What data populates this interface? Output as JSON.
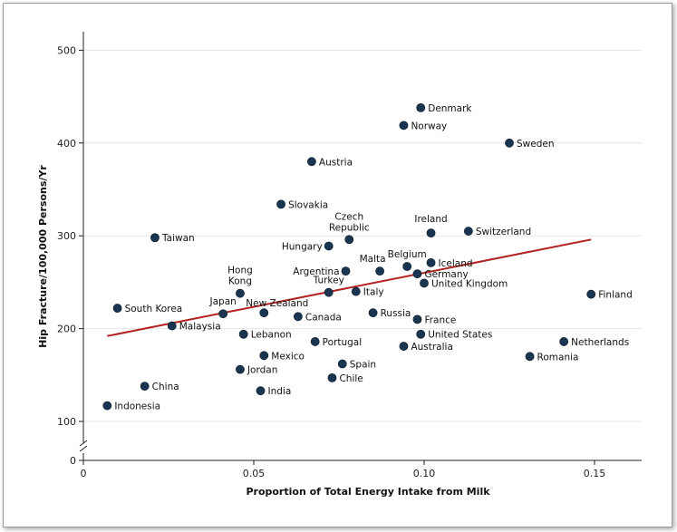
{
  "chart_data": {
    "type": "scatter",
    "xlabel": "Proportion of Total Energy Intake from Milk",
    "ylabel": "Hip Fracture/100,000 Persons/Yr",
    "xlim": [
      0,
      0.16
    ],
    "ylim": [
      0,
      520
    ],
    "x_ticks": [
      0,
      0.05,
      0.1,
      0.15
    ],
    "x_tick_labels": [
      "0",
      "0.05",
      "0.10",
      "0.15"
    ],
    "y_ticks": [
      0,
      100,
      200,
      300,
      400,
      500
    ],
    "y_tick_labels": [
      "0",
      "100",
      "200",
      "300",
      "400",
      "500"
    ],
    "axis_break": "y between 0 and 100",
    "grid": "horizontal",
    "point_color": "#1a3550",
    "trend_color": "#b22222",
    "trend_line": {
      "x": [
        0.007,
        0.149
      ],
      "y": [
        192,
        296
      ]
    },
    "points": [
      {
        "label": "Denmark",
        "x": 0.099,
        "y": 438,
        "lx": 0,
        "ly": 0,
        "anchor": "start"
      },
      {
        "label": "Norway",
        "x": 0.094,
        "y": 419,
        "lx": 0,
        "ly": 0,
        "anchor": "start"
      },
      {
        "label": "Sweden",
        "x": 0.125,
        "y": 400,
        "lx": 0,
        "ly": 0,
        "anchor": "start"
      },
      {
        "label": "Austria",
        "x": 0.067,
        "y": 380,
        "lx": 0,
        "ly": 0,
        "anchor": "start"
      },
      {
        "label": "Slovakia",
        "x": 0.058,
        "y": 334,
        "lx": 0,
        "ly": 0,
        "anchor": "start"
      },
      {
        "label": "Czech Republic",
        "x": 0.078,
        "y": 296,
        "lx": 0,
        "ly": 0,
        "anchor": "middle"
      },
      {
        "label": "Ireland",
        "x": 0.102,
        "y": 303,
        "lx": 0,
        "ly": 0,
        "anchor": "middle"
      },
      {
        "label": "Switzerland",
        "x": 0.113,
        "y": 305,
        "lx": 0,
        "ly": 0,
        "anchor": "start"
      },
      {
        "label": "Taiwan",
        "x": 0.021,
        "y": 298,
        "lx": 0,
        "ly": 0,
        "anchor": "start"
      },
      {
        "label": "Hungary",
        "x": 0.072,
        "y": 289,
        "lx": 0,
        "ly": 0,
        "anchor": "end"
      },
      {
        "label": "Iceland",
        "x": 0.102,
        "y": 271,
        "lx": 0,
        "ly": 0,
        "anchor": "start"
      },
      {
        "label": "Belgium",
        "x": 0.095,
        "y": 267,
        "lx": 0,
        "ly": 0,
        "anchor": "middle"
      },
      {
        "label": "Malta",
        "x": 0.087,
        "y": 262,
        "lx": 0,
        "ly": 0,
        "anchor": "middle"
      },
      {
        "label": "Argentina",
        "x": 0.077,
        "y": 262,
        "lx": 0,
        "ly": 0,
        "anchor": "end"
      },
      {
        "label": "Germany",
        "x": 0.098,
        "y": 259,
        "lx": 0,
        "ly": 0,
        "anchor": "start"
      },
      {
        "label": "United Kingdom",
        "x": 0.1,
        "y": 249,
        "lx": 0,
        "ly": 0,
        "anchor": "start"
      },
      {
        "label": "Turkey",
        "x": 0.072,
        "y": 239,
        "lx": 0,
        "ly": 0,
        "anchor": "middle"
      },
      {
        "label": "Italy",
        "x": 0.08,
        "y": 240,
        "lx": 0,
        "ly": 0,
        "anchor": "start"
      },
      {
        "label": "Hong Kong",
        "x": 0.046,
        "y": 238,
        "lx": 0,
        "ly": 0,
        "anchor": "middle"
      },
      {
        "label": "Finland",
        "x": 0.149,
        "y": 237,
        "lx": 0,
        "ly": 0,
        "anchor": "start"
      },
      {
        "label": "South Korea",
        "x": 0.01,
        "y": 222,
        "lx": 0,
        "ly": 0,
        "anchor": "start"
      },
      {
        "label": "Japan",
        "x": 0.041,
        "y": 216,
        "lx": 0,
        "ly": 0,
        "anchor": "middle"
      },
      {
        "label": "New Zealand",
        "x": 0.053,
        "y": 217,
        "lx": 0,
        "ly": 0,
        "anchor": "start"
      },
      {
        "label": "Canada",
        "x": 0.063,
        "y": 213,
        "lx": 0,
        "ly": 0,
        "anchor": "start"
      },
      {
        "label": "Russia",
        "x": 0.085,
        "y": 217,
        "lx": 0,
        "ly": 0,
        "anchor": "start"
      },
      {
        "label": "France",
        "x": 0.098,
        "y": 210,
        "lx": 0,
        "ly": 0,
        "anchor": "start"
      },
      {
        "label": "Malaysia",
        "x": 0.026,
        "y": 203,
        "lx": 0,
        "ly": 0,
        "anchor": "start"
      },
      {
        "label": "Lebanon",
        "x": 0.047,
        "y": 194,
        "lx": 0,
        "ly": 0,
        "anchor": "start"
      },
      {
        "label": "United States",
        "x": 0.099,
        "y": 194,
        "lx": 0,
        "ly": 0,
        "anchor": "start"
      },
      {
        "label": "Portugal",
        "x": 0.068,
        "y": 186,
        "lx": 0,
        "ly": 0,
        "anchor": "start"
      },
      {
        "label": "Australia",
        "x": 0.094,
        "y": 181,
        "lx": 0,
        "ly": 0,
        "anchor": "start"
      },
      {
        "label": "Netherlands",
        "x": 0.141,
        "y": 186,
        "lx": 0,
        "ly": 0,
        "anchor": "start"
      },
      {
        "label": "Mexico",
        "x": 0.053,
        "y": 171,
        "lx": 0,
        "ly": 0,
        "anchor": "start"
      },
      {
        "label": "Romania",
        "x": 0.131,
        "y": 170,
        "lx": 0,
        "ly": 0,
        "anchor": "start"
      },
      {
        "label": "Spain",
        "x": 0.076,
        "y": 162,
        "lx": 0,
        "ly": 0,
        "anchor": "start"
      },
      {
        "label": "Jordan",
        "x": 0.046,
        "y": 156,
        "lx": 0,
        "ly": 0,
        "anchor": "start"
      },
      {
        "label": "Chile",
        "x": 0.073,
        "y": 147,
        "lx": 0,
        "ly": 0,
        "anchor": "start"
      },
      {
        "label": "China",
        "x": 0.018,
        "y": 138,
        "lx": 0,
        "ly": 0,
        "anchor": "start"
      },
      {
        "label": "India",
        "x": 0.052,
        "y": 133,
        "lx": 0,
        "ly": 0,
        "anchor": "start"
      },
      {
        "label": "Indonesia",
        "x": 0.007,
        "y": 117,
        "lx": 0,
        "ly": 0,
        "anchor": "start"
      }
    ]
  }
}
